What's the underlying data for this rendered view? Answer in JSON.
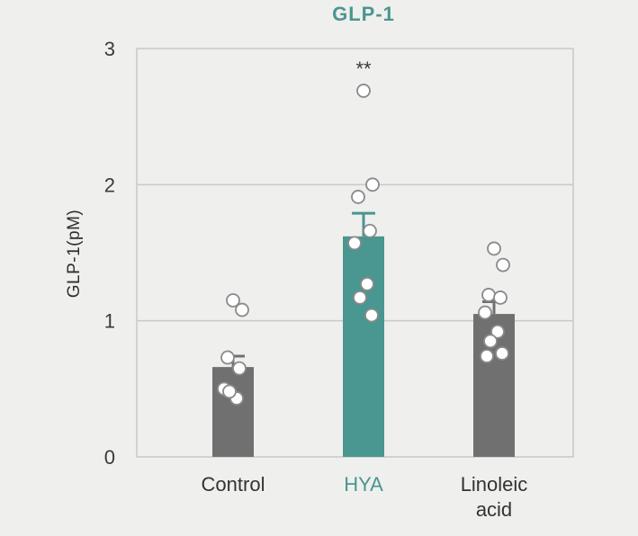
{
  "chart_data": {
    "type": "bar",
    "title": "GLP-1",
    "ylabel": "GLP-1(pM)",
    "xlabel": "",
    "ylim": [
      0,
      3
    ],
    "yticks": [
      "0",
      "1",
      "2",
      "3"
    ],
    "ytick_values": [
      0,
      1,
      2,
      3
    ],
    "grid": true,
    "categories": [
      "Control",
      "HYA",
      "Linoleic\nacid"
    ],
    "category_lines": [
      [
        "Control"
      ],
      [
        "HYA"
      ],
      [
        "Linoleic",
        "acid"
      ]
    ],
    "values": [
      0.66,
      1.62,
      1.05
    ],
    "error": [
      0.08,
      0.17,
      0.09
    ],
    "significance": [
      "",
      "**",
      ""
    ],
    "points": [
      [
        1.15,
        1.08,
        0.73,
        0.65,
        0.5,
        0.43,
        0.48
      ],
      [
        2.69,
        2.0,
        1.91,
        1.66,
        1.57,
        1.27,
        1.17,
        1.04
      ],
      [
        1.53,
        1.41,
        1.19,
        1.17,
        1.06,
        0.92,
        0.85,
        0.76,
        0.74
      ]
    ],
    "colors": {
      "bars": [
        "#707070",
        "#4a9690",
        "#707070"
      ],
      "title": "#4a9690",
      "category_labels": [
        "#333333",
        "#4a9690",
        "#333333"
      ],
      "error_bars": [
        "#707070",
        "#4a9690",
        "#707070"
      ],
      "grid": "#c9c9c7",
      "frame": "#c9c9c7",
      "point_fill": "#ffffff",
      "point_stroke": "#8a8a8a"
    }
  }
}
